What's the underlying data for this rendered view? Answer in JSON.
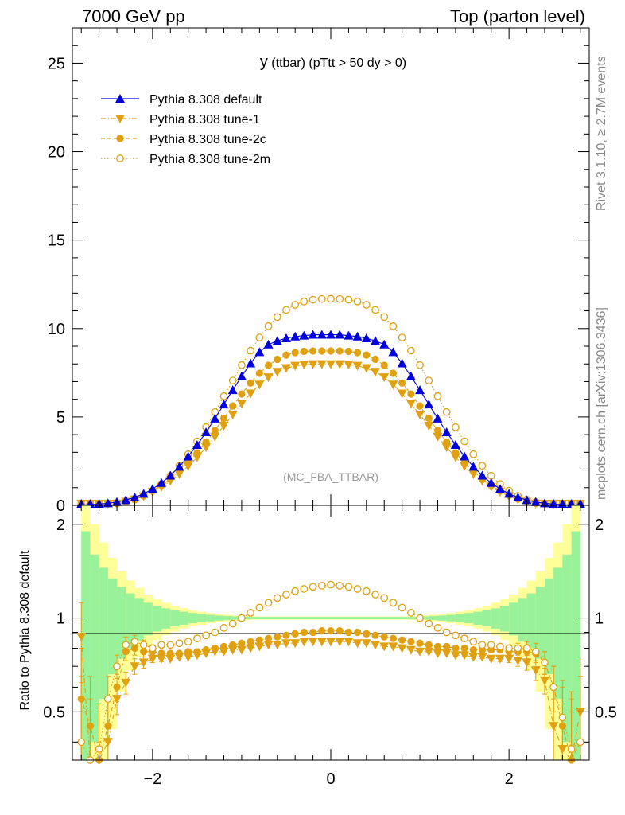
{
  "header": {
    "left": "7000 GeV pp",
    "right": "Top (parton level)"
  },
  "side_text": {
    "rivet": "Rivet 3.1.10, ≥ 2.7M events",
    "mcplots": "mcplots.cern.ch [arXiv:1306.3436]"
  },
  "colors": {
    "default": "#0000dd",
    "tunes": "#e0a010",
    "band_green": "#99f299",
    "band_yellow": "#ffff99"
  },
  "chart_data": [
    {
      "type": "line",
      "title_main": "y",
      "title_rest": " (ttbar) (pTtt > 50 dy > 0)",
      "watermark": "(MC_FBA_TTBAR)",
      "xlim": [
        -2.9,
        2.9
      ],
      "ylim": [
        0,
        27
      ],
      "x_ticks": [
        -2,
        0,
        2
      ],
      "y_ticks": [
        0,
        5,
        10,
        15,
        20,
        25
      ],
      "y_tick_labels": [
        "0",
        "5",
        "10",
        "15",
        "20",
        "25"
      ],
      "legend_position": "top-left",
      "x": [
        -2.8,
        -2.7,
        -2.6,
        -2.5,
        -2.4,
        -2.3,
        -2.2,
        -2.1,
        -2.0,
        -1.9,
        -1.8,
        -1.7,
        -1.6,
        -1.5,
        -1.4,
        -1.3,
        -1.2,
        -1.1,
        -1.0,
        -0.9,
        -0.8,
        -0.7,
        -0.6,
        -0.5,
        -0.4,
        -0.3,
        -0.2,
        -0.1,
        0.0,
        0.1,
        0.2,
        0.3,
        0.4,
        0.5,
        0.6,
        0.7,
        0.8,
        0.9,
        1.0,
        1.1,
        1.2,
        1.3,
        1.4,
        1.5,
        1.6,
        1.7,
        1.8,
        1.9,
        2.0,
        2.1,
        2.2,
        2.3,
        2.4,
        2.5,
        2.6,
        2.7,
        2.8
      ],
      "series": [
        {
          "name": "Pythia 8.308 default",
          "marker": "triangle-up",
          "line": "solid",
          "values": [
            0.02,
            0.04,
            0.07,
            0.12,
            0.19,
            0.3,
            0.45,
            0.66,
            0.93,
            1.27,
            1.69,
            2.19,
            2.77,
            3.42,
            4.14,
            4.91,
            5.71,
            6.52,
            7.3,
            8.03,
            8.67,
            9.1,
            9.3,
            9.45,
            9.55,
            9.6,
            9.65,
            9.65,
            9.65,
            9.65,
            9.6,
            9.55,
            9.45,
            9.3,
            9.1,
            8.67,
            8.03,
            7.3,
            6.52,
            5.71,
            4.91,
            4.14,
            3.42,
            2.77,
            2.19,
            1.69,
            1.27,
            0.93,
            0.66,
            0.45,
            0.3,
            0.19,
            0.12,
            0.07,
            0.04,
            0.02,
            0.01
          ]
        },
        {
          "name": "Pythia 8.308 tune-1",
          "marker": "triangle-down",
          "line": "dash-dot",
          "values": [
            0.01,
            0.01,
            0.02,
            0.05,
            0.1,
            0.2,
            0.33,
            0.52,
            0.76,
            1.04,
            1.38,
            1.77,
            2.22,
            2.72,
            3.28,
            3.88,
            4.5,
            5.13,
            5.75,
            6.32,
            6.83,
            7.24,
            7.55,
            7.76,
            7.89,
            7.96,
            7.98,
            7.98,
            7.98,
            7.98,
            7.96,
            7.89,
            7.76,
            7.55,
            7.24,
            6.83,
            6.32,
            5.75,
            5.13,
            4.5,
            3.88,
            3.28,
            2.72,
            2.22,
            1.77,
            1.38,
            1.04,
            0.76,
            0.52,
            0.33,
            0.2,
            0.1,
            0.05,
            0.02,
            0.01,
            0.01,
            0.0
          ]
        },
        {
          "name": "Pythia 8.308 tune-2c",
          "marker": "circle",
          "line": "dashed",
          "values": [
            0.01,
            0.02,
            0.03,
            0.07,
            0.12,
            0.22,
            0.36,
            0.56,
            0.82,
            1.13,
            1.5,
            1.93,
            2.42,
            2.97,
            3.58,
            4.24,
            4.93,
            5.62,
            6.3,
            6.92,
            7.47,
            7.92,
            8.26,
            8.5,
            8.64,
            8.71,
            8.73,
            8.73,
            8.73,
            8.73,
            8.71,
            8.64,
            8.5,
            8.26,
            7.92,
            7.47,
            6.92,
            6.3,
            5.62,
            4.93,
            4.24,
            3.58,
            2.97,
            2.42,
            1.93,
            1.5,
            1.13,
            0.82,
            0.56,
            0.36,
            0.22,
            0.12,
            0.07,
            0.03,
            0.02,
            0.01,
            0.0
          ]
        },
        {
          "name": "Pythia 8.308 tune-2m",
          "marker": "circle-open",
          "line": "dotted",
          "values": [
            0.01,
            0.01,
            0.02,
            0.05,
            0.1,
            0.19,
            0.33,
            0.54,
            0.83,
            1.21,
            1.68,
            2.24,
            2.89,
            3.62,
            4.42,
            5.28,
            6.17,
            7.06,
            7.93,
            8.75,
            9.49,
            10.13,
            10.65,
            11.05,
            11.34,
            11.53,
            11.63,
            11.67,
            11.68,
            11.67,
            11.63,
            11.53,
            11.34,
            11.05,
            10.65,
            10.13,
            9.49,
            8.75,
            7.93,
            7.06,
            6.17,
            5.28,
            4.42,
            3.62,
            2.89,
            2.24,
            1.68,
            1.21,
            0.83,
            0.54,
            0.33,
            0.19,
            0.1,
            0.05,
            0.02,
            0.01,
            0.0
          ]
        }
      ]
    },
    {
      "type": "line",
      "ylabel": "Ratio to Pythia 8.308 default",
      "xlim": [
        -2.9,
        2.9
      ],
      "ylim": [
        0.35,
        2.3
      ],
      "x_ticks": [
        -2,
        0,
        2
      ],
      "x_tick_labels": [
        "−2",
        "0",
        "2"
      ],
      "y_ticks": [
        0.5,
        1,
        2
      ],
      "y_tick_labels": [
        "0.5",
        "1",
        "2"
      ],
      "band_edges": [
        -2.8,
        -2.7,
        -2.6,
        -2.5,
        -2.4,
        -2.3,
        -2.2,
        -2.1,
        -2.0,
        -1.9,
        -1.8,
        -1.7,
        -1.6,
        -1.5,
        -1.4,
        -1.3,
        -1.2,
        -1.1,
        -1.0,
        -0.9,
        0.9,
        1.0,
        1.1,
        1.2,
        1.3,
        1.4,
        1.5,
        1.6,
        1.7,
        1.8,
        1.9,
        2.0,
        2.1,
        2.2,
        2.3,
        2.4,
        2.5,
        2.6,
        2.7,
        2.8
      ],
      "band_green_half": [
        0.9,
        0.6,
        0.45,
        0.34,
        0.26,
        0.2,
        0.16,
        0.12,
        0.095,
        0.075,
        0.06,
        0.048,
        0.038,
        0.03,
        0.024,
        0.019,
        0.015,
        0.012,
        0.01,
        0.008,
        0.01,
        0.012,
        0.015,
        0.019,
        0.024,
        0.03,
        0.038,
        0.048,
        0.06,
        0.075,
        0.095,
        0.12,
        0.16,
        0.2,
        0.26,
        0.34,
        0.45,
        0.6,
        0.9
      ],
      "band_yellow_half": [
        1.4,
        1.0,
        0.75,
        0.56,
        0.42,
        0.32,
        0.25,
        0.19,
        0.15,
        0.12,
        0.095,
        0.075,
        0.06,
        0.048,
        0.038,
        0.03,
        0.024,
        0.019,
        0.015,
        0.012,
        0.015,
        0.019,
        0.024,
        0.03,
        0.038,
        0.048,
        0.06,
        0.075,
        0.095,
        0.12,
        0.15,
        0.19,
        0.25,
        0.32,
        0.42,
        0.56,
        0.75,
        1.0,
        1.4
      ],
      "series": [
        {
          "name": "Pythia 8.308 tune-1",
          "marker": "triangle-down",
          "line": "dash-dot",
          "values": [
            0.87,
            0.3,
            0.25,
            0.4,
            0.55,
            0.62,
            0.7,
            0.72,
            0.74,
            0.74,
            0.74,
            0.75,
            0.75,
            0.76,
            0.77,
            0.78,
            0.78,
            0.79,
            0.79,
            0.8,
            0.81,
            0.82,
            0.82,
            0.83,
            0.83,
            0.84,
            0.84,
            0.84,
            0.84,
            0.84,
            0.84,
            0.83,
            0.83,
            0.82,
            0.81,
            0.81,
            0.8,
            0.79,
            0.78,
            0.78,
            0.77,
            0.77,
            0.76,
            0.76,
            0.75,
            0.75,
            0.74,
            0.74,
            0.74,
            0.73,
            0.72,
            0.68,
            0.63,
            0.45,
            0.38,
            0.3,
            0.5
          ],
          "errors": [
            0.25,
            0.2,
            0.15,
            0.1,
            0.06,
            0.05,
            0.04,
            0.03,
            0.02,
            0.015,
            0.012,
            0.01,
            0.008,
            0.007,
            0.006,
            0.005,
            0.005,
            0.004,
            0.004,
            0.004,
            0.003,
            0.003,
            0.003,
            0.003,
            0.003,
            0.003,
            0.003,
            0.003,
            0.003,
            0.003,
            0.003,
            0.003,
            0.003,
            0.003,
            0.003,
            0.003,
            0.003,
            0.004,
            0.004,
            0.004,
            0.005,
            0.005,
            0.006,
            0.007,
            0.008,
            0.01,
            0.012,
            0.015,
            0.02,
            0.03,
            0.04,
            0.05,
            0.06,
            0.1,
            0.15,
            0.2,
            0.25
          ]
        },
        {
          "name": "Pythia 8.308 tune-2c",
          "marker": "circle",
          "line": "dashed",
          "values": [
            0.55,
            0.45,
            0.35,
            0.45,
            0.6,
            0.78,
            0.8,
            0.78,
            0.78,
            0.77,
            0.77,
            0.77,
            0.78,
            0.78,
            0.79,
            0.8,
            0.81,
            0.82,
            0.83,
            0.84,
            0.85,
            0.86,
            0.87,
            0.88,
            0.89,
            0.9,
            0.9,
            0.91,
            0.91,
            0.91,
            0.9,
            0.9,
            0.89,
            0.88,
            0.87,
            0.86,
            0.85,
            0.84,
            0.83,
            0.82,
            0.81,
            0.81,
            0.8,
            0.8,
            0.79,
            0.79,
            0.79,
            0.79,
            0.78,
            0.78,
            0.78,
            0.77,
            0.72,
            0.6,
            0.45,
            0.35,
            0.4
          ],
          "errors": [
            0.25,
            0.2,
            0.15,
            0.1,
            0.06,
            0.05,
            0.04,
            0.03,
            0.02,
            0.015,
            0.012,
            0.01,
            0.008,
            0.007,
            0.006,
            0.005,
            0.005,
            0.004,
            0.004,
            0.004,
            0.003,
            0.003,
            0.003,
            0.003,
            0.003,
            0.003,
            0.003,
            0.003,
            0.003,
            0.003,
            0.003,
            0.003,
            0.003,
            0.003,
            0.003,
            0.003,
            0.003,
            0.004,
            0.004,
            0.004,
            0.005,
            0.005,
            0.006,
            0.007,
            0.008,
            0.01,
            0.012,
            0.015,
            0.02,
            0.03,
            0.04,
            0.05,
            0.06,
            0.1,
            0.15,
            0.2,
            0.25
          ]
        },
        {
          "name": "Pythia 8.308 tune-2m",
          "marker": "circle-open",
          "line": "dotted",
          "values": [
            0.4,
            0.35,
            0.38,
            0.55,
            0.7,
            0.82,
            0.84,
            0.82,
            0.8,
            0.82,
            0.82,
            0.83,
            0.84,
            0.86,
            0.88,
            0.9,
            0.93,
            0.96,
            1.0,
            1.04,
            1.08,
            1.12,
            1.16,
            1.19,
            1.22,
            1.24,
            1.26,
            1.27,
            1.28,
            1.27,
            1.26,
            1.24,
            1.22,
            1.19,
            1.16,
            1.12,
            1.08,
            1.04,
            1.0,
            0.96,
            0.93,
            0.9,
            0.88,
            0.86,
            0.84,
            0.82,
            0.82,
            0.81,
            0.8,
            0.8,
            0.8,
            0.78,
            0.72,
            0.6,
            0.48,
            0.38,
            0.4
          ],
          "errors": [
            0.25,
            0.2,
            0.15,
            0.1,
            0.06,
            0.05,
            0.04,
            0.03,
            0.02,
            0.015,
            0.012,
            0.01,
            0.008,
            0.007,
            0.006,
            0.005,
            0.005,
            0.004,
            0.004,
            0.004,
            0.003,
            0.003,
            0.003,
            0.003,
            0.003,
            0.003,
            0.003,
            0.003,
            0.003,
            0.003,
            0.003,
            0.003,
            0.003,
            0.003,
            0.003,
            0.003,
            0.003,
            0.004,
            0.004,
            0.004,
            0.005,
            0.005,
            0.006,
            0.007,
            0.008,
            0.01,
            0.012,
            0.015,
            0.02,
            0.03,
            0.04,
            0.05,
            0.06,
            0.1,
            0.15,
            0.2,
            0.25
          ]
        }
      ]
    }
  ]
}
